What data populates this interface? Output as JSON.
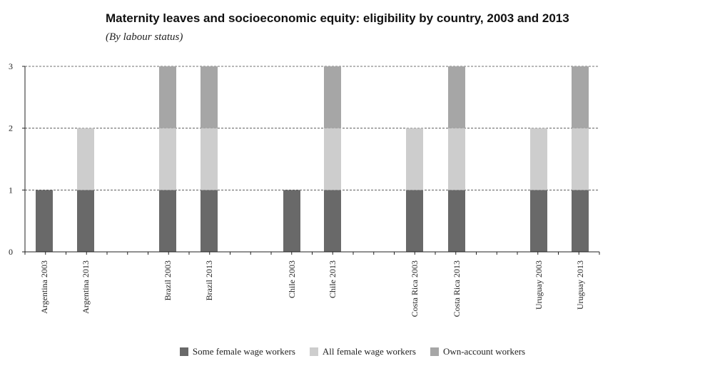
{
  "chart_data": {
    "type": "bar",
    "stacked": true,
    "title": "Maternity leaves and socioeconomic equity: eligibility by country, 2003 and 2013",
    "subtitle": "(By labour status)",
    "categories": [
      "Argentina 2003",
      "Argentina 2013",
      "Brazil 2003",
      "Brazil 2013",
      "Chile 2003",
      "Chile 2013",
      "Costa Rica 2003",
      "Costa Rica 2013",
      "Uruguay 2003",
      "Uruguay 2013"
    ],
    "series": [
      {
        "name": "Some female wage workers",
        "color": "#696969",
        "values": [
          1,
          1,
          1,
          1,
          1,
          1,
          1,
          1,
          1,
          1
        ]
      },
      {
        "name": "All female wage workers",
        "color": "#cdcdcd",
        "values": [
          0,
          1,
          1,
          1,
          0,
          1,
          1,
          1,
          1,
          1
        ]
      },
      {
        "name": "Own-account workers",
        "color": "#a6a6a6",
        "values": [
          0,
          0,
          1,
          1,
          0,
          1,
          0,
          1,
          0,
          1
        ]
      }
    ],
    "ylim": [
      0,
      3
    ],
    "yticks": [
      0,
      1,
      2,
      3
    ],
    "grid": "dashed horizontal",
    "legend": "bottom-center"
  }
}
